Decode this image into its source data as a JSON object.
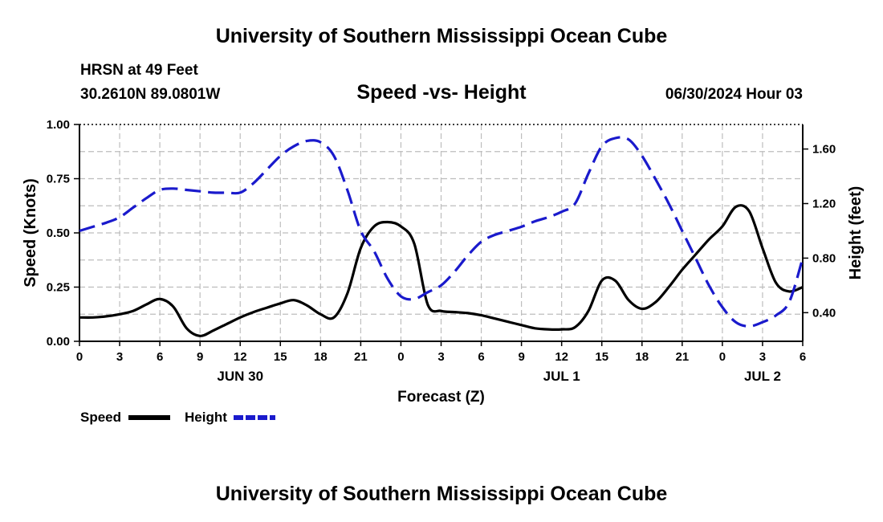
{
  "top_title": "University of Southern Mississippi Ocean Cube",
  "bottom_title": "University of Southern Mississippi Ocean Cube",
  "station": {
    "name": "HRSN at 49 Feet",
    "coords": "30.2610N  89.0801W",
    "datetime": "06/30/2024 Hour 03"
  },
  "colors": {
    "speed": "#000000",
    "height": "#1a1acc",
    "grid": "#bdbdbd"
  },
  "chart_data": {
    "type": "line",
    "title": "Speed -vs- Height",
    "xlabel": "Forecast (Z)",
    "ylabel_left": "Speed (Knots)",
    "ylabel_right": "Height (feet)",
    "x_unit": "hours since 2024-06-30 00Z",
    "xlim": [
      0,
      54
    ],
    "ylim_left": [
      0,
      1
    ],
    "ylim_right": [
      0.19,
      1.78
    ],
    "yticks_left": [
      {
        "value": 0,
        "label": "0.00"
      },
      {
        "value": 0.25,
        "label": "0.25"
      },
      {
        "value": 0.5,
        "label": "0.50"
      },
      {
        "value": 0.75,
        "label": "0.75"
      },
      {
        "value": 1,
        "label": "1.00"
      }
    ],
    "yticks_right": [
      {
        "value": 0.4,
        "label": "0.40"
      },
      {
        "value": 0.8,
        "label": "0.80"
      },
      {
        "value": 1.2,
        "label": "1.20"
      },
      {
        "value": 1.6,
        "label": "1.60"
      }
    ],
    "xticks": [
      {
        "value": 0,
        "label": "0"
      },
      {
        "value": 3,
        "label": "3"
      },
      {
        "value": 6,
        "label": "6"
      },
      {
        "value": 9,
        "label": "9"
      },
      {
        "value": 12,
        "label": "12"
      },
      {
        "value": 15,
        "label": "15"
      },
      {
        "value": 18,
        "label": "18"
      },
      {
        "value": 21,
        "label": "21"
      },
      {
        "value": 24,
        "label": "0"
      },
      {
        "value": 27,
        "label": "3"
      },
      {
        "value": 30,
        "label": "6"
      },
      {
        "value": 33,
        "label": "9"
      },
      {
        "value": 36,
        "label": "12"
      },
      {
        "value": 39,
        "label": "15"
      },
      {
        "value": 42,
        "label": "18"
      },
      {
        "value": 45,
        "label": "21"
      },
      {
        "value": 48,
        "label": "0"
      },
      {
        "value": 51,
        "label": "3"
      },
      {
        "value": 54,
        "label": "6"
      }
    ],
    "day_labels": [
      {
        "value": 12,
        "label": "JUN 30"
      },
      {
        "value": 36,
        "label": "JUL 1"
      },
      {
        "value": 51,
        "label": "JUL 2"
      }
    ],
    "series": [
      {
        "name": "Speed",
        "axis": "left",
        "style": "solid",
        "x": [
          0,
          1,
          2,
          3,
          4,
          5,
          6,
          7,
          8,
          9,
          10,
          11,
          12,
          13,
          14,
          15,
          16,
          17,
          18,
          19,
          20,
          21,
          22,
          23,
          24,
          25,
          26,
          27,
          28,
          29,
          30,
          31,
          32,
          33,
          34,
          35,
          36,
          37,
          38,
          39,
          40,
          41,
          42,
          43,
          44,
          45,
          46,
          47,
          48,
          49,
          50,
          51,
          52,
          53,
          54
        ],
        "values": [
          0.11,
          0.11,
          0.115,
          0.125,
          0.14,
          0.17,
          0.195,
          0.16,
          0.06,
          0.025,
          0.05,
          0.08,
          0.11,
          0.135,
          0.155,
          0.175,
          0.19,
          0.165,
          0.125,
          0.11,
          0.22,
          0.43,
          0.53,
          0.55,
          0.53,
          0.45,
          0.17,
          0.14,
          0.135,
          0.13,
          0.12,
          0.105,
          0.09,
          0.075,
          0.06,
          0.055,
          0.055,
          0.065,
          0.14,
          0.28,
          0.28,
          0.19,
          0.15,
          0.18,
          0.25,
          0.33,
          0.4,
          0.47,
          0.53,
          0.62,
          0.6,
          0.43,
          0.27,
          0.23,
          0.25
        ]
      },
      {
        "name": "Height",
        "axis": "right",
        "style": "dashed",
        "x": [
          0,
          1,
          2,
          3,
          4,
          5,
          6,
          7,
          8,
          9,
          10,
          11,
          12,
          13,
          14,
          15,
          16,
          17,
          18,
          19,
          20,
          21,
          22,
          23,
          24,
          25,
          26,
          27,
          28,
          29,
          30,
          31,
          32,
          33,
          34,
          35,
          36,
          37,
          38,
          39,
          40,
          41,
          42,
          43,
          44,
          45,
          46,
          47,
          48,
          49,
          50,
          51,
          52,
          53,
          54
        ],
        "values": [
          1.0,
          1.03,
          1.06,
          1.1,
          1.17,
          1.24,
          1.3,
          1.31,
          1.3,
          1.29,
          1.28,
          1.28,
          1.28,
          1.35,
          1.45,
          1.55,
          1.62,
          1.66,
          1.65,
          1.55,
          1.3,
          1.0,
          0.85,
          0.65,
          0.52,
          0.5,
          0.55,
          0.6,
          0.7,
          0.82,
          0.92,
          0.97,
          1.0,
          1.03,
          1.07,
          1.1,
          1.14,
          1.2,
          1.42,
          1.62,
          1.68,
          1.67,
          1.55,
          1.38,
          1.2,
          1.0,
          0.8,
          0.6,
          0.44,
          0.33,
          0.3,
          0.33,
          0.38,
          0.48,
          0.8
        ]
      }
    ],
    "legend": [
      {
        "label": "Speed",
        "series": "Speed"
      },
      {
        "label": "Height",
        "series": "Height"
      }
    ],
    "grid": true
  }
}
